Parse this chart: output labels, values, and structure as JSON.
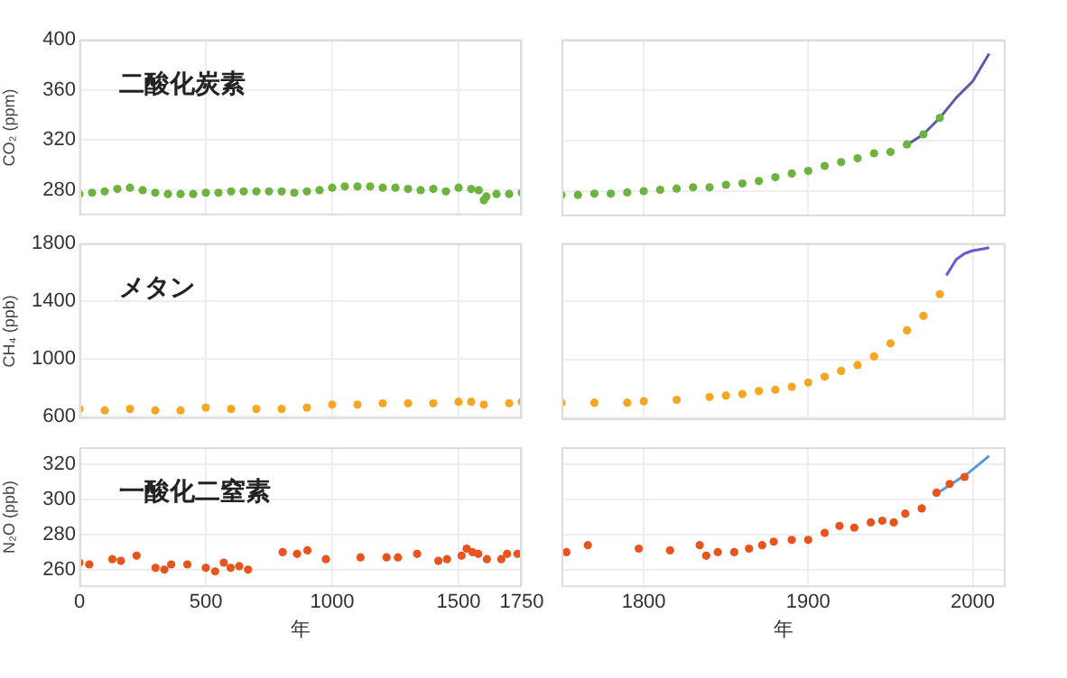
{
  "chart_data": [
    {
      "type": "scatter",
      "title": "二酸化炭素",
      "ylabel": "CO₂ (ppm)",
      "xlim": [
        0,
        1750
      ],
      "xticks": [
        0,
        500,
        1000,
        1500,
        1750
      ],
      "ylim": [
        260,
        400
      ],
      "yticks": [
        280,
        320,
        360,
        400
      ],
      "grid": true,
      "tick_labels": "y",
      "series": [
        {
          "marker": "circle",
          "color": "#6db33f",
          "x": [
            0,
            50,
            100,
            150,
            200,
            250,
            300,
            350,
            400,
            450,
            500,
            550,
            600,
            650,
            700,
            750,
            800,
            850,
            900,
            950,
            1000,
            1050,
            1100,
            1150,
            1200,
            1250,
            1300,
            1350,
            1400,
            1450,
            1500,
            1550,
            1580,
            1600,
            1610,
            1650,
            1700,
            1750
          ],
          "values": [
            277,
            278,
            279,
            281,
            282,
            280,
            278,
            277,
            277,
            277,
            278,
            278,
            279,
            279,
            279,
            279,
            279,
            278,
            279,
            280,
            282,
            283,
            283,
            283,
            282,
            282,
            281,
            280,
            281,
            279,
            282,
            281,
            280,
            272,
            275,
            277,
            277,
            278
          ]
        }
      ]
    },
    {
      "type": "scatter",
      "xlim": [
        1750,
        2020
      ],
      "xticks": [
        1800,
        1900,
        2000
      ],
      "ylim": [
        260,
        400
      ],
      "yticks": [
        280,
        320,
        360,
        400
      ],
      "grid": true,
      "tick_labels": false,
      "series": [
        {
          "marker": "circle",
          "color": "#6db33f",
          "x": [
            1750,
            1760,
            1770,
            1780,
            1790,
            1800,
            1810,
            1820,
            1830,
            1840,
            1850,
            1860,
            1870,
            1880,
            1890,
            1900,
            1910,
            1920,
            1930,
            1940,
            1950,
            1960,
            1970,
            1980
          ],
          "values": [
            277,
            277,
            278,
            278,
            279,
            280,
            281,
            282,
            283,
            283,
            285,
            286,
            288,
            291,
            294,
            296,
            300,
            303,
            306,
            310,
            311,
            317,
            325,
            338
          ]
        },
        {
          "type": "line",
          "marker": "none",
          "color": "#5b5ea6",
          "x": [
            1958,
            1970,
            1980,
            1990,
            2000,
            2005,
            2010
          ],
          "values": [
            315,
            325,
            338,
            354,
            367,
            378,
            389
          ]
        }
      ]
    },
    {
      "type": "scatter",
      "title": "メタン",
      "ylabel": "CH₄ (ppb)",
      "xlim": [
        0,
        1750
      ],
      "xticks": [
        0,
        500,
        1000,
        1500,
        1750
      ],
      "ylim": [
        580,
        1800
      ],
      "yticks": [
        600,
        1000,
        1400,
        1800
      ],
      "grid": true,
      "tick_labels": "y",
      "series": [
        {
          "marker": "circle",
          "color": "#f5a623",
          "x": [
            0,
            100,
            200,
            300,
            400,
            500,
            600,
            700,
            800,
            900,
            1000,
            1100,
            1200,
            1300,
            1400,
            1500,
            1550,
            1600,
            1700,
            1750
          ],
          "values": [
            650,
            640,
            650,
            640,
            640,
            660,
            650,
            650,
            650,
            660,
            680,
            680,
            690,
            690,
            690,
            700,
            700,
            680,
            690,
            700
          ]
        }
      ]
    },
    {
      "type": "scatter",
      "xlim": [
        1750,
        2020
      ],
      "xticks": [
        1800,
        1900,
        2000
      ],
      "ylim": [
        580,
        1800
      ],
      "yticks": [
        600,
        1000,
        1400,
        1800
      ],
      "grid": true,
      "tick_labels": false,
      "series": [
        {
          "marker": "circle",
          "color": "#f5a623",
          "x": [
            1750,
            1770,
            1790,
            1800,
            1820,
            1840,
            1850,
            1860,
            1870,
            1880,
            1890,
            1900,
            1910,
            1920,
            1930,
            1940,
            1950,
            1960,
            1970,
            1980
          ],
          "values": [
            700,
            700,
            700,
            710,
            720,
            740,
            750,
            760,
            780,
            790,
            810,
            840,
            880,
            920,
            960,
            1020,
            1110,
            1200,
            1300,
            1450
          ]
        },
        {
          "type": "line",
          "marker": "none",
          "color": "#6a5acd",
          "x": [
            1984,
            1990,
            1995,
            2000,
            2005,
            2010
          ],
          "values": [
            1580,
            1690,
            1730,
            1750,
            1760,
            1770
          ]
        }
      ]
    },
    {
      "type": "scatter",
      "title": "一酸化二窒素",
      "ylabel": "N₂O (ppb)",
      "xlabel": "年",
      "xlim": [
        0,
        1750
      ],
      "xticks": [
        0,
        500,
        1000,
        1500,
        1750
      ],
      "ylim": [
        250,
        330
      ],
      "yticks": [
        260,
        280,
        300,
        320
      ],
      "grid": true,
      "series": [
        {
          "marker": "circle",
          "color": "#e8541e",
          "x": [
            0,
            39,
            130,
            164,
            226,
            301,
            336,
            363,
            427,
            500,
            537,
            571,
            598,
            632,
            667,
            804,
            861,
            902,
            975,
            1112,
            1215,
            1260,
            1336,
            1420,
            1454,
            1512,
            1532,
            1555,
            1578,
            1612,
            1669,
            1692,
            1733
          ],
          "values": [
            264,
            263,
            266,
            265,
            268,
            261,
            260,
            263,
            263,
            261,
            259,
            264,
            261,
            262,
            260,
            270,
            269,
            271,
            266,
            267,
            267,
            267,
            269,
            265,
            266,
            268,
            272,
            270,
            269,
            266,
            266,
            269,
            269
          ]
        }
      ]
    },
    {
      "type": "scatter",
      "xlabel": "年",
      "xlim": [
        1750,
        2020
      ],
      "xticks": [
        1800,
        1900,
        2000
      ],
      "ylim": [
        250,
        330
      ],
      "yticks": [
        260,
        280,
        300,
        320
      ],
      "grid": true,
      "tick_labels": "x",
      "series": [
        {
          "marker": "circle",
          "color": "#e8541e",
          "x": [
            1753,
            1766,
            1797,
            1816,
            1834,
            1838,
            1845,
            1855,
            1864,
            1872,
            1879,
            1890,
            1900,
            1910,
            1919,
            1928,
            1938,
            1945,
            1952,
            1959,
            1969,
            1978,
            1986,
            1995
          ],
          "values": [
            270,
            274,
            272,
            271,
            274,
            268,
            270,
            270,
            272,
            274,
            276,
            277,
            277,
            281,
            285,
            284,
            287,
            288,
            287,
            292,
            295,
            304,
            309,
            313
          ]
        },
        {
          "type": "line",
          "marker": "none",
          "color": "#5b9bd5",
          "x": [
            1979,
            1997,
            2010
          ],
          "values": [
            304,
            315,
            325
          ]
        }
      ]
    }
  ]
}
